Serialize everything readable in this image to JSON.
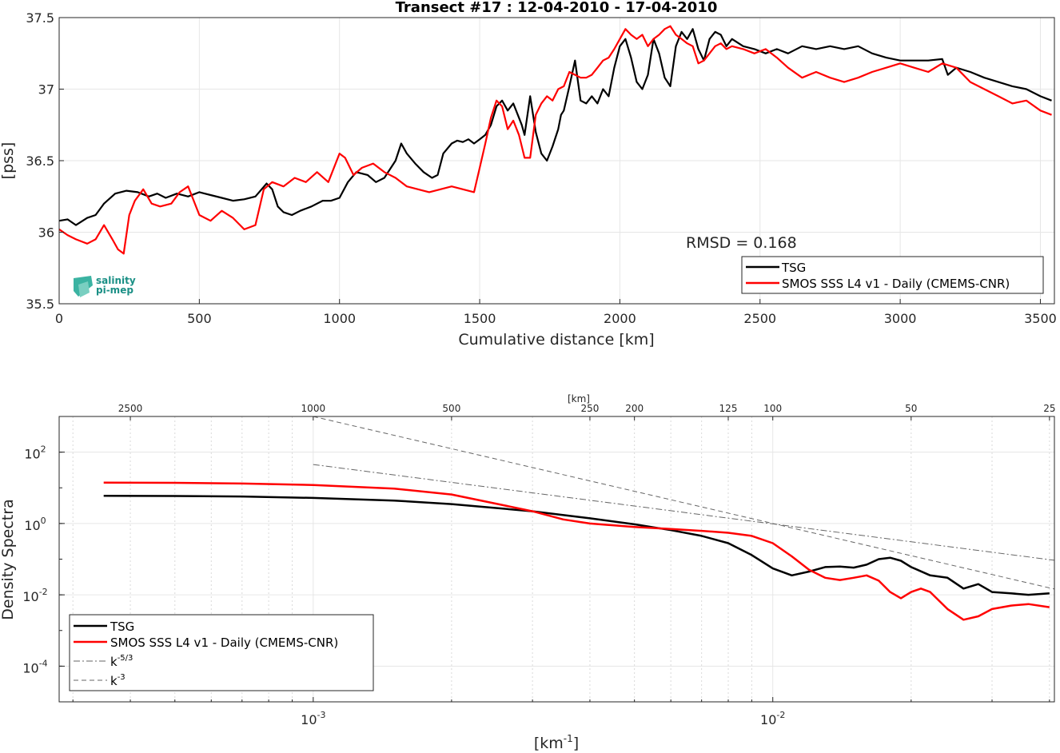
{
  "chart_data": [
    {
      "type": "line",
      "title": "Transect #17 : 12-04-2010 - 17-04-2010",
      "xlabel": "Cumulative distance [km]",
      "ylabel": "[pss]",
      "xlim": [
        0,
        3550
      ],
      "ylim": [
        35.5,
        37.5
      ],
      "xticks": [
        "0",
        "500",
        "1000",
        "1500",
        "2000",
        "2500",
        "3000",
        "3500"
      ],
      "yticks": [
        "35.5",
        "36",
        "36.5",
        "37",
        "37.5"
      ],
      "grid": true,
      "annotation": "RMSD = 0.168",
      "legend": [
        "TSG",
        "SMOS SSS L4 v1 - Daily (CMEMS-CNR)"
      ],
      "legend_position": "bottom-right",
      "logo_text": [
        "salinity",
        "pi-mep"
      ],
      "series": [
        {
          "name": "TSG",
          "color": "#000000",
          "x": [
            0,
            30,
            60,
            100,
            130,
            160,
            200,
            240,
            280,
            320,
            350,
            380,
            420,
            460,
            500,
            540,
            580,
            620,
            660,
            700,
            740,
            760,
            780,
            800,
            830,
            860,
            900,
            940,
            970,
            1000,
            1030,
            1060,
            1100,
            1130,
            1160,
            1200,
            1220,
            1240,
            1270,
            1300,
            1330,
            1350,
            1370,
            1400,
            1420,
            1440,
            1460,
            1480,
            1500,
            1520,
            1540,
            1560,
            1580,
            1600,
            1620,
            1640,
            1650,
            1660,
            1680,
            1700,
            1720,
            1740,
            1760,
            1780,
            1790,
            1800,
            1820,
            1840,
            1860,
            1880,
            1900,
            1920,
            1940,
            1960,
            1980,
            2000,
            2020,
            2040,
            2060,
            2080,
            2100,
            2120,
            2140,
            2160,
            2180,
            2200,
            2220,
            2240,
            2260,
            2280,
            2300,
            2320,
            2340,
            2360,
            2380,
            2400,
            2440,
            2480,
            2520,
            2560,
            2600,
            2650,
            2700,
            2750,
            2800,
            2850,
            2900,
            2950,
            3000,
            3050,
            3100,
            3150,
            3170,
            3200,
            3250,
            3300,
            3350,
            3400,
            3450,
            3500,
            3540
          ],
          "values": [
            36.08,
            36.09,
            36.05,
            36.1,
            36.12,
            36.2,
            36.27,
            36.29,
            36.28,
            36.25,
            36.27,
            36.24,
            36.27,
            36.25,
            36.28,
            36.26,
            36.24,
            36.22,
            36.23,
            36.25,
            36.34,
            36.3,
            36.18,
            36.14,
            36.12,
            36.15,
            36.18,
            36.22,
            36.22,
            36.24,
            36.35,
            36.42,
            36.4,
            36.35,
            36.38,
            36.5,
            36.62,
            36.55,
            36.48,
            36.42,
            36.38,
            36.4,
            36.55,
            36.62,
            36.64,
            36.63,
            36.65,
            36.62,
            36.65,
            36.68,
            36.75,
            36.88,
            36.92,
            36.85,
            36.9,
            36.8,
            36.75,
            36.68,
            36.95,
            36.7,
            36.55,
            36.5,
            36.6,
            36.72,
            36.82,
            36.85,
            37.02,
            37.2,
            36.92,
            36.9,
            36.95,
            36.9,
            37.0,
            36.95,
            37.15,
            37.3,
            37.35,
            37.22,
            37.05,
            37.0,
            37.1,
            37.35,
            37.25,
            37.08,
            37.02,
            37.3,
            37.4,
            37.35,
            37.42,
            37.28,
            37.2,
            37.35,
            37.4,
            37.38,
            37.3,
            37.35,
            37.3,
            37.28,
            37.25,
            37.28,
            37.25,
            37.3,
            37.28,
            37.3,
            37.28,
            37.3,
            37.25,
            37.22,
            37.2,
            37.2,
            37.2,
            37.21,
            37.1,
            37.15,
            37.12,
            37.08,
            37.05,
            37.02,
            37.0,
            36.95,
            36.92
          ]
        },
        {
          "name": "SMOS SSS L4 v1 - Daily (CMEMS-CNR)",
          "color": "#ff0000",
          "x": [
            0,
            30,
            60,
            100,
            130,
            160,
            190,
            210,
            230,
            250,
            270,
            300,
            330,
            360,
            400,
            430,
            460,
            500,
            540,
            580,
            620,
            660,
            700,
            730,
            760,
            800,
            840,
            880,
            920,
            960,
            1000,
            1020,
            1050,
            1080,
            1120,
            1160,
            1200,
            1240,
            1280,
            1320,
            1360,
            1400,
            1440,
            1480,
            1500,
            1520,
            1540,
            1560,
            1580,
            1600,
            1620,
            1640,
            1660,
            1680,
            1700,
            1720,
            1740,
            1760,
            1780,
            1800,
            1820,
            1840,
            1860,
            1880,
            1900,
            1920,
            1940,
            1960,
            1980,
            2000,
            2020,
            2040,
            2060,
            2080,
            2100,
            2120,
            2140,
            2160,
            2180,
            2200,
            2220,
            2240,
            2260,
            2280,
            2300,
            2320,
            2340,
            2360,
            2380,
            2400,
            2440,
            2480,
            2520,
            2560,
            2600,
            2650,
            2700,
            2750,
            2800,
            2850,
            2900,
            2950,
            3000,
            3050,
            3100,
            3150,
            3200,
            3250,
            3300,
            3350,
            3400,
            3450,
            3500,
            3540
          ],
          "values": [
            36.02,
            35.98,
            35.95,
            35.92,
            35.95,
            36.05,
            35.95,
            35.88,
            35.85,
            36.12,
            36.22,
            36.3,
            36.2,
            36.18,
            36.2,
            36.28,
            36.32,
            36.12,
            36.08,
            36.15,
            36.1,
            36.02,
            36.05,
            36.3,
            36.35,
            36.32,
            36.38,
            36.35,
            36.42,
            36.35,
            36.55,
            36.52,
            36.4,
            36.45,
            36.48,
            36.42,
            36.38,
            36.32,
            36.3,
            36.28,
            36.3,
            36.32,
            36.3,
            36.28,
            36.45,
            36.62,
            36.8,
            36.92,
            36.88,
            36.72,
            36.78,
            36.68,
            36.52,
            36.52,
            36.82,
            36.9,
            36.95,
            36.92,
            37.0,
            37.02,
            37.12,
            37.1,
            37.08,
            37.08,
            37.1,
            37.15,
            37.2,
            37.22,
            37.28,
            37.35,
            37.42,
            37.38,
            37.35,
            37.38,
            37.3,
            37.35,
            37.38,
            37.42,
            37.44,
            37.38,
            37.35,
            37.32,
            37.3,
            37.18,
            37.2,
            37.25,
            37.3,
            37.32,
            37.28,
            37.3,
            37.28,
            37.25,
            37.28,
            37.22,
            37.15,
            37.08,
            37.12,
            37.08,
            37.05,
            37.08,
            37.12,
            37.15,
            37.18,
            37.15,
            37.12,
            37.18,
            37.15,
            37.05,
            37.0,
            36.95,
            36.9,
            36.92,
            36.85,
            36.82
          ]
        }
      ]
    },
    {
      "type": "line",
      "title": "",
      "xlabel": "[km^-1]",
      "xlabel_base": "[km",
      "xlabel_sup": "-1",
      "xlabel_end": "]",
      "ylabel": "Density Spectra",
      "xscale": "log",
      "yscale": "log",
      "xlim": [
        0.00028,
        0.041
      ],
      "ylim": [
        1e-05,
        1000
      ],
      "xticks": [
        {
          "value": 0.001,
          "base": "10",
          "sup": "-3"
        },
        {
          "value": 0.01,
          "base": "10",
          "sup": "-2"
        }
      ],
      "yticks": [
        {
          "value": 0.0001,
          "base": "10",
          "sup": "-4"
        },
        {
          "value": 0.01,
          "base": "10",
          "sup": "-2"
        },
        {
          "value": 1,
          "base": "10",
          "sup": "0"
        },
        {
          "value": 100,
          "base": "10",
          "sup": "2"
        }
      ],
      "top_axis_label": "[km]",
      "top_ticks": [
        "2500",
        "1000",
        "500",
        "250",
        "200",
        "125",
        "100",
        "50",
        "25"
      ],
      "grid": true,
      "legend_position": "bottom-left",
      "series": [
        {
          "name": "TSG",
          "color": "#000000",
          "x": [
            0.00035,
            0.0005,
            0.0007,
            0.001,
            0.0015,
            0.002,
            0.003,
            0.004,
            0.005,
            0.006,
            0.007,
            0.008,
            0.009,
            0.01,
            0.011,
            0.012,
            0.013,
            0.014,
            0.015,
            0.016,
            0.017,
            0.018,
            0.019,
            0.02,
            0.022,
            0.024,
            0.026,
            0.028,
            0.03,
            0.033,
            0.036,
            0.04
          ],
          "values": [
            6.0,
            5.9,
            5.7,
            5.2,
            4.4,
            3.5,
            2.2,
            1.4,
            0.95,
            0.65,
            0.45,
            0.28,
            0.13,
            0.055,
            0.035,
            0.045,
            0.06,
            0.062,
            0.058,
            0.07,
            0.1,
            0.11,
            0.09,
            0.06,
            0.035,
            0.03,
            0.015,
            0.02,
            0.012,
            0.011,
            0.01,
            0.011
          ]
        },
        {
          "name": "SMOS SSS L4 v1 - Daily (CMEMS-CNR)",
          "color": "#ff0000",
          "x": [
            0.00035,
            0.0005,
            0.0007,
            0.001,
            0.0015,
            0.002,
            0.0025,
            0.003,
            0.0035,
            0.004,
            0.005,
            0.006,
            0.007,
            0.008,
            0.009,
            0.01,
            0.011,
            0.012,
            0.013,
            0.014,
            0.015,
            0.016,
            0.017,
            0.018,
            0.019,
            0.02,
            0.021,
            0.022,
            0.024,
            0.026,
            0.028,
            0.03,
            0.033,
            0.036,
            0.04
          ],
          "values": [
            14.0,
            13.8,
            13.2,
            12.0,
            9.5,
            6.5,
            3.6,
            2.2,
            1.3,
            1.0,
            0.8,
            0.7,
            0.62,
            0.55,
            0.45,
            0.28,
            0.12,
            0.05,
            0.03,
            0.026,
            0.03,
            0.035,
            0.025,
            0.012,
            0.008,
            0.012,
            0.015,
            0.012,
            0.004,
            0.002,
            0.0025,
            0.004,
            0.005,
            0.0055,
            0.0045
          ]
        },
        {
          "name": "k^-5/3",
          "label_base": "k",
          "label_sup": "-5/3",
          "color": "#666666",
          "dash": "dashdot",
          "x": [
            0.001,
            0.041
          ],
          "values": [
            45.0,
            0.093
          ]
        },
        {
          "name": "k^-3",
          "label_base": "k",
          "label_sup": "-3",
          "color": "#666666",
          "dash": "dashed",
          "x": [
            0.001,
            0.041
          ],
          "values": [
            1000,
            0.0145
          ]
        }
      ]
    }
  ]
}
